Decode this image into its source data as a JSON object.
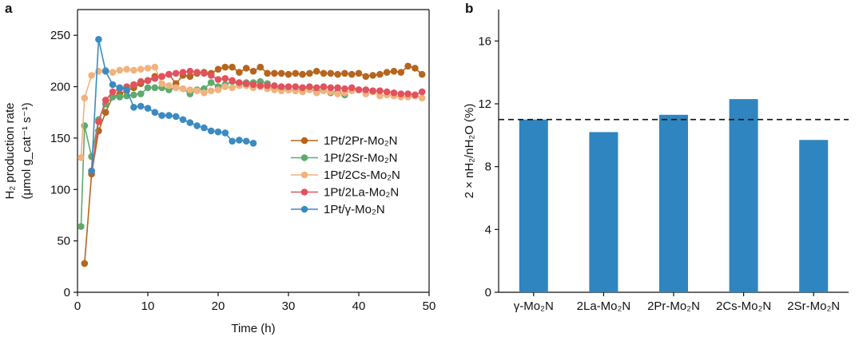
{
  "panels": {
    "a": "a",
    "b": "b"
  },
  "chart_data": [
    {
      "type": "line",
      "panel": "a",
      "xlabel": "Time (h)",
      "ylabel_line1": "H₂ production rate",
      "ylabel_line2": "(μmol g_cat⁻¹ s⁻¹)",
      "xlim": [
        0,
        50
      ],
      "ylim": [
        0,
        275
      ],
      "xticks": [
        0,
        10,
        20,
        30,
        40,
        50
      ],
      "yticks": [
        0,
        50,
        100,
        150,
        200,
        250
      ],
      "legend_position": "center-right",
      "series": [
        {
          "name": "1Pt/2Pr-Mo₂N",
          "color": "#b5651d",
          "points": [
            [
              1,
              28
            ],
            [
              2,
              115
            ],
            [
              3,
              157
            ],
            [
              4,
              175
            ],
            [
              5,
              190
            ],
            [
              6,
              193
            ],
            [
              7,
              196
            ],
            [
              8,
              199
            ],
            [
              9,
              203
            ],
            [
              10,
              206
            ],
            [
              11,
              210
            ],
            [
              12,
              210
            ],
            [
              13,
              212
            ],
            [
              14,
              203
            ],
            [
              15,
              211
            ],
            [
              16,
              210
            ],
            [
              17,
              213
            ],
            [
              18,
              214
            ],
            [
              19,
              213
            ],
            [
              20,
              217
            ],
            [
              21,
              219
            ],
            [
              22,
              219
            ],
            [
              23,
              214
            ],
            [
              24,
              218
            ],
            [
              25,
              215
            ],
            [
              26,
              219
            ],
            [
              27,
              213
            ],
            [
              28,
              213
            ],
            [
              29,
              213
            ],
            [
              30,
              212
            ],
            [
              31,
              213
            ],
            [
              32,
              212
            ],
            [
              33,
              213
            ],
            [
              34,
              215
            ],
            [
              35,
              213
            ],
            [
              36,
              213
            ],
            [
              37,
              212
            ],
            [
              38,
              213
            ],
            [
              39,
              212
            ],
            [
              40,
              213
            ],
            [
              41,
              210
            ],
            [
              42,
              211
            ],
            [
              43,
              212
            ],
            [
              44,
              214
            ],
            [
              45,
              215
            ],
            [
              46,
              214
            ],
            [
              47,
              220
            ],
            [
              48,
              218
            ],
            [
              49,
              212
            ]
          ]
        },
        {
          "name": "1Pt/2Sr-Mo₂N",
          "color": "#5faa6e",
          "points": [
            [
              0.5,
              64
            ],
            [
              1,
              162
            ],
            [
              2,
              132
            ],
            [
              3,
              168
            ],
            [
              4,
              183
            ],
            [
              5,
              190
            ],
            [
              6,
              190
            ],
            [
              7,
              191
            ],
            [
              8,
              192
            ],
            [
              9,
              193
            ],
            [
              10,
              199
            ],
            [
              11,
              199
            ],
            [
              12,
              199
            ],
            [
              13,
              197
            ],
            [
              14,
              199
            ],
            [
              15,
              198
            ],
            [
              16,
              193
            ],
            [
              17,
              197
            ],
            [
              18,
              198
            ],
            [
              19,
              204
            ],
            [
              20,
              200
            ],
            [
              21,
              202
            ],
            [
              22,
              205
            ],
            [
              23,
              202
            ],
            [
              24,
              204
            ],
            [
              25,
              204
            ],
            [
              26,
              205
            ],
            [
              27,
              203
            ],
            [
              28,
              199
            ],
            [
              29,
              198
            ],
            [
              30,
              197
            ],
            [
              31,
              196
            ],
            [
              32,
              199
            ],
            [
              33,
              198
            ],
            [
              34,
              195
            ],
            [
              35,
              197
            ],
            [
              36,
              194
            ],
            [
              37,
              195
            ],
            [
              38,
              192
            ]
          ]
        },
        {
          "name": "1Pt/2Cs-Mo₂N",
          "color": "#f2b27e",
          "points": [
            [
              0.5,
              131
            ],
            [
              1,
              189
            ],
            [
              2,
              211
            ],
            [
              3,
              215
            ],
            [
              4,
              216
            ],
            [
              5,
              214
            ],
            [
              6,
              216
            ],
            [
              7,
              217
            ],
            [
              8,
              216
            ],
            [
              9,
              217
            ],
            [
              10,
              218
            ],
            [
              11,
              219
            ],
            [
              12,
              203
            ],
            [
              13,
              201
            ],
            [
              14,
              199
            ],
            [
              15,
              198
            ],
            [
              16,
              197
            ],
            [
              17,
              196
            ],
            [
              18,
              194
            ],
            [
              19,
              196
            ],
            [
              20,
              197
            ],
            [
              21,
              200
            ],
            [
              22,
              199
            ],
            [
              23,
              201
            ],
            [
              24,
              201
            ],
            [
              25,
              199
            ],
            [
              26,
              200
            ],
            [
              27,
              198
            ],
            [
              28,
              197
            ],
            [
              29,
              196
            ],
            [
              30,
              197
            ],
            [
              31,
              196
            ],
            [
              32,
              195
            ],
            [
              33,
              197
            ],
            [
              34,
              194
            ],
            [
              35,
              196
            ],
            [
              36,
              195
            ],
            [
              37,
              193
            ],
            [
              38,
              194
            ],
            [
              39,
              196
            ],
            [
              40,
              197
            ],
            [
              41,
              193
            ],
            [
              42,
              195
            ],
            [
              43,
              191
            ],
            [
              44,
              192
            ],
            [
              45,
              191
            ],
            [
              46,
              190
            ],
            [
              47,
              190
            ],
            [
              48,
              191
            ],
            [
              49,
              189
            ]
          ]
        },
        {
          "name": "1Pt/2La-Mo₂N",
          "color": "#e1525e",
          "points": [
            [
              2,
              118
            ],
            [
              3,
              166
            ],
            [
              4,
              187
            ],
            [
              5,
              195
            ],
            [
              6,
              198
            ],
            [
              7,
              200
            ],
            [
              8,
              202
            ],
            [
              9,
              205
            ],
            [
              10,
              206
            ],
            [
              11,
              208
            ],
            [
              12,
              210
            ],
            [
              13,
              212
            ],
            [
              14,
              213
            ],
            [
              15,
              214
            ],
            [
              16,
              215
            ],
            [
              17,
              214
            ],
            [
              18,
              213
            ],
            [
              19,
              211
            ],
            [
              20,
              207
            ],
            [
              21,
              208
            ],
            [
              22,
              206
            ],
            [
              23,
              204
            ],
            [
              24,
              203
            ],
            [
              25,
              202
            ],
            [
              26,
              201
            ],
            [
              27,
              201
            ],
            [
              28,
              201
            ],
            [
              29,
              200
            ],
            [
              30,
              200
            ],
            [
              31,
              200
            ],
            [
              32,
              199
            ],
            [
              33,
              200
            ],
            [
              34,
              199
            ],
            [
              35,
              200
            ],
            [
              36,
              199
            ],
            [
              37,
              199
            ],
            [
              38,
              198
            ],
            [
              39,
              199
            ],
            [
              40,
              197
            ],
            [
              41,
              197
            ],
            [
              42,
              196
            ],
            [
              43,
              196
            ],
            [
              44,
              195
            ],
            [
              45,
              194
            ],
            [
              46,
              193
            ],
            [
              47,
              193
            ],
            [
              48,
              192
            ],
            [
              49,
              195
            ]
          ]
        },
        {
          "name": "1Pt/γ-Mo₂N",
          "color": "#3a8bc1",
          "points": [
            [
              2,
              118
            ],
            [
              3,
              246
            ],
            [
              4,
              215
            ],
            [
              5,
              202
            ],
            [
              6,
              199
            ],
            [
              7,
              197
            ],
            [
              8,
              180
            ],
            [
              9,
              181
            ],
            [
              10,
              179
            ],
            [
              11,
              175
            ],
            [
              12,
              172
            ],
            [
              13,
              172
            ],
            [
              14,
              171
            ],
            [
              15,
              168
            ],
            [
              16,
              165
            ],
            [
              17,
              162
            ],
            [
              18,
              160
            ],
            [
              19,
              157
            ],
            [
              20,
              156
            ],
            [
              21,
              155
            ],
            [
              22,
              147
            ],
            [
              23,
              148
            ],
            [
              24,
              147
            ],
            [
              25,
              145
            ]
          ]
        }
      ]
    },
    {
      "type": "bar",
      "panel": "b",
      "ylabel": "2 × nH₂/nH₂O (%)",
      "ylim": [
        0,
        18
      ],
      "yticks": [
        0,
        4,
        8,
        12,
        16
      ],
      "categories": [
        "γ-Mo₂N",
        "2La-Mo₂N",
        "2Pr-Mo₂N",
        "2Cs-Mo₂N",
        "2Sr-Mo₂N"
      ],
      "values": [
        11.0,
        10.2,
        11.3,
        12.3,
        9.7
      ],
      "bar_color": "#2f85bf",
      "reference_line": 11.0
    }
  ]
}
